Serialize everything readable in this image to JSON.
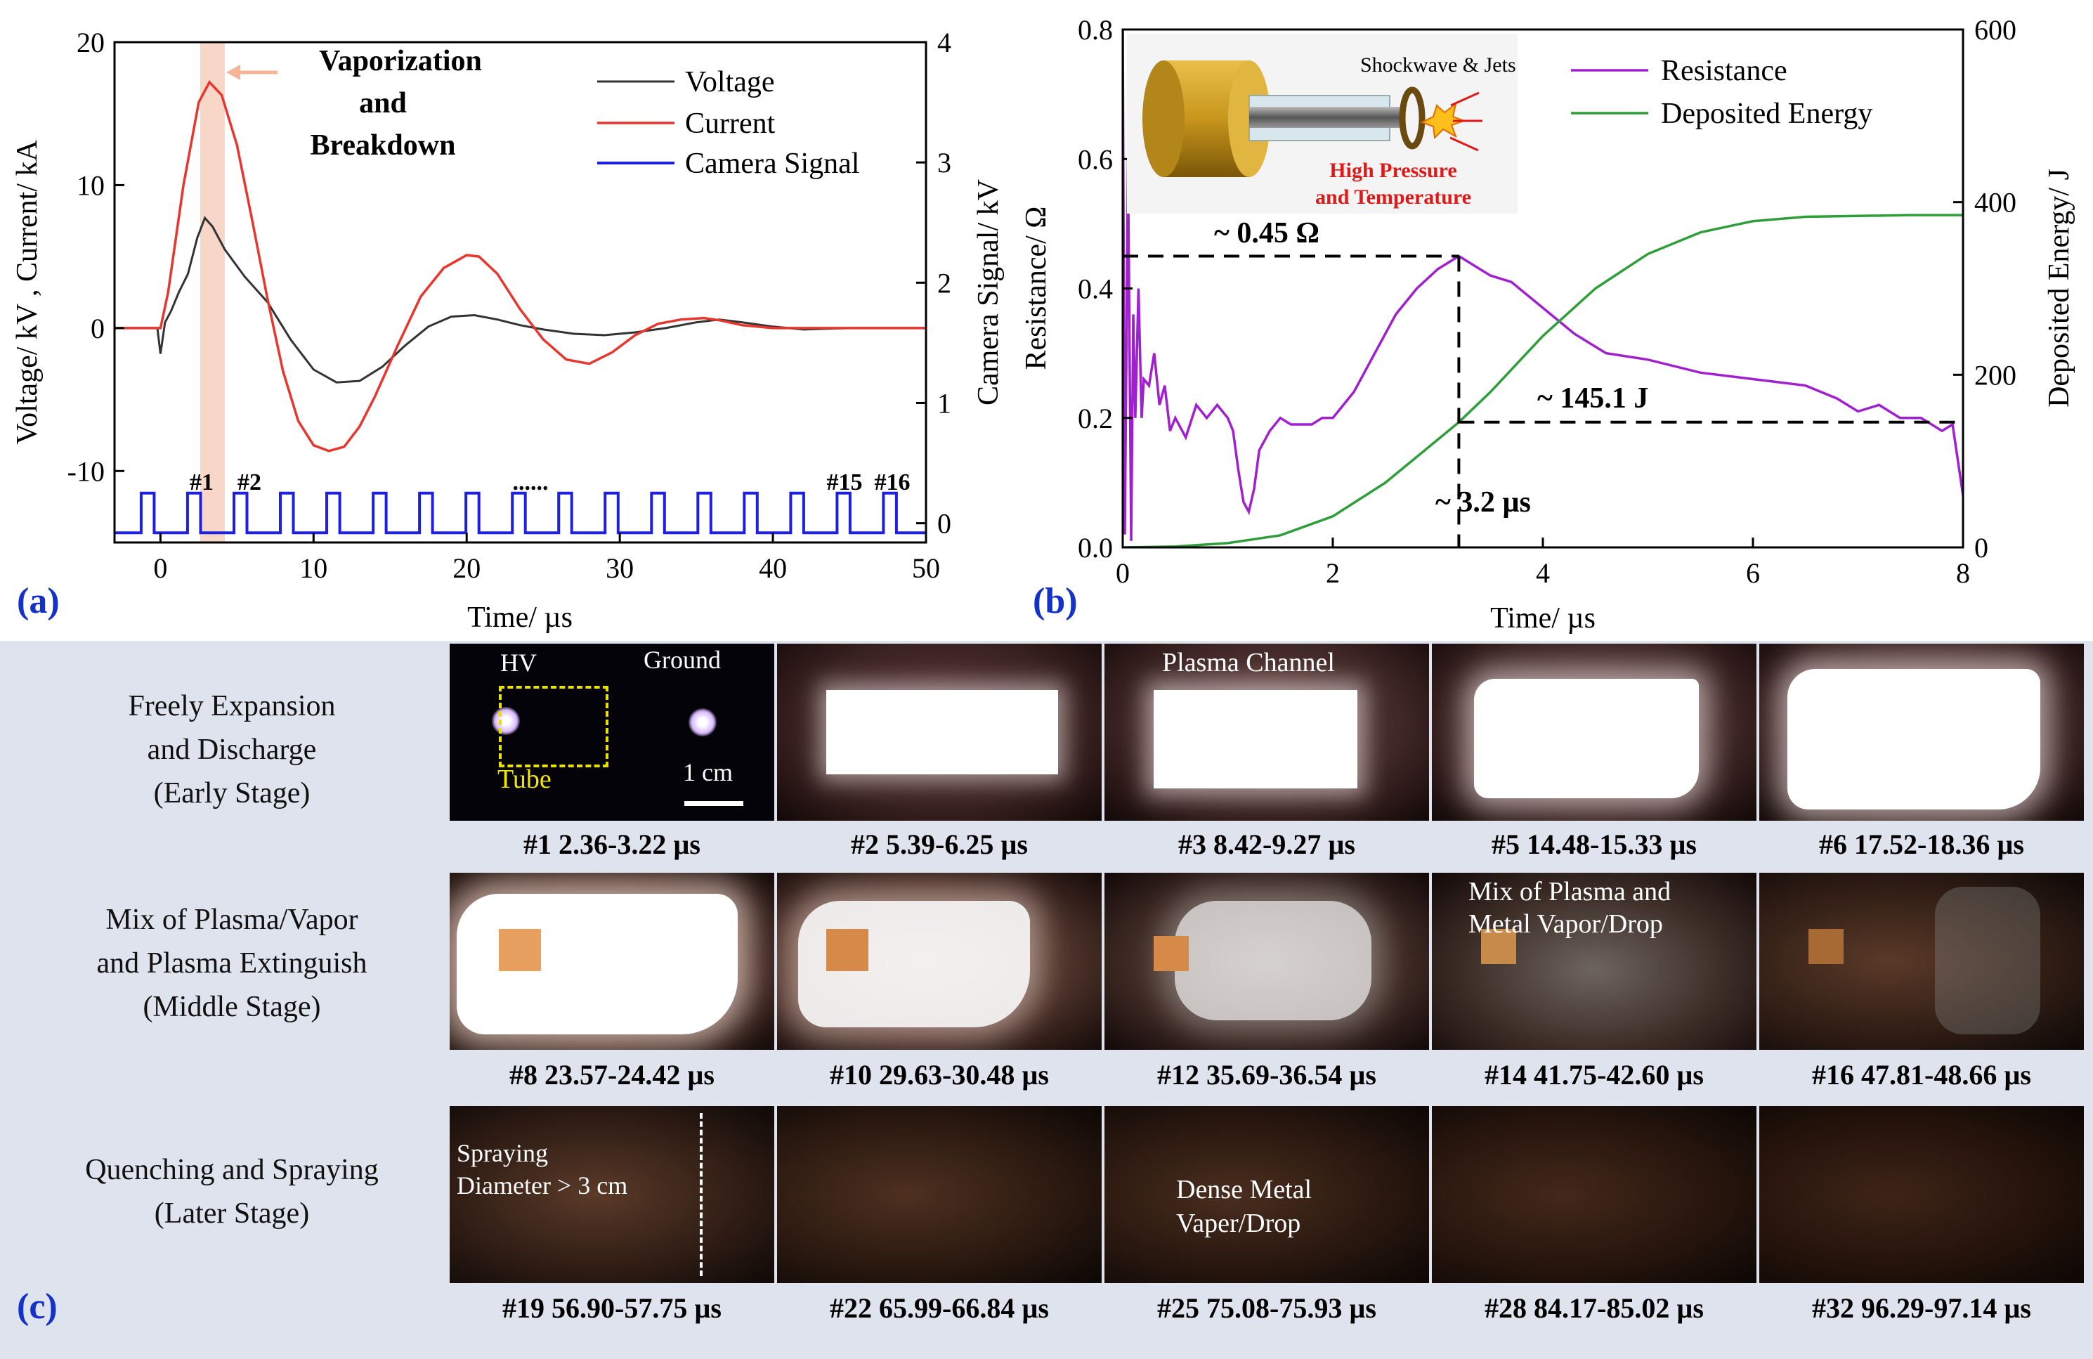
{
  "panel_a": {
    "letter": "(a)",
    "chart_data": {
      "type": "line",
      "xlabel": "Time/ µs",
      "ylabel_left": "Voltage/ kV , Current/ kA",
      "ylabel_right": "Camera Signal/ kV",
      "xlim": [
        -3,
        50
      ],
      "ylim_left": [
        -15,
        20
      ],
      "ylim_right": [
        -0.16,
        4
      ],
      "xticks": [
        "0",
        "10",
        "20",
        "30",
        "40",
        "50"
      ],
      "yticks_left": [
        "-10",
        "0",
        "10",
        "20"
      ],
      "yticks_right": [
        "0",
        "1",
        "2",
        "3",
        "4"
      ],
      "highlight_span": [
        2.6,
        4.2
      ],
      "annotation": [
        "Vaporization",
        "and",
        "Breakdown"
      ],
      "frame_marks": [
        "#1",
        "#2",
        "......",
        "#15",
        "#16"
      ],
      "legend": [
        "Voltage",
        "Current",
        "Camera Signal"
      ],
      "series": [
        {
          "name": "Voltage",
          "color": "#333333",
          "axis": "left",
          "x": [
            -3,
            -0.2,
            0,
            0.3,
            0.7,
            1.2,
            1.8,
            2.4,
            2.9,
            3.4,
            4.2,
            5.5,
            7,
            8.5,
            10,
            11.5,
            13,
            14.5,
            16,
            17.5,
            19,
            20.5,
            22,
            23.5,
            25,
            27,
            29,
            31,
            33,
            35,
            36.5,
            38,
            40,
            42,
            45,
            50
          ],
          "y": [
            0,
            0,
            -1.8,
            0.4,
            1.2,
            2.5,
            3.8,
            6.3,
            7.7,
            7.1,
            5.5,
            3.6,
            1.8,
            -0.8,
            -2.9,
            -3.8,
            -3.7,
            -2.7,
            -1.2,
            0.1,
            0.8,
            0.9,
            0.6,
            0.2,
            -0.1,
            -0.4,
            -0.5,
            -0.3,
            0,
            0.4,
            0.6,
            0.4,
            0.1,
            -0.1,
            0,
            0
          ]
        },
        {
          "name": "Current",
          "color": "#e8362e",
          "axis": "left",
          "x": [
            -3,
            0,
            0.5,
            1.5,
            2.5,
            3.2,
            4,
            5,
            6,
            7,
            8,
            9,
            10,
            11,
            12,
            13,
            14,
            15.5,
            17,
            18.5,
            20,
            20.8,
            22,
            23.5,
            25,
            26.5,
            28,
            29.5,
            31,
            32.5,
            34,
            35.5,
            36.5,
            38,
            40,
            42,
            45,
            50
          ],
          "y": [
            0,
            0,
            2.5,
            10,
            15.8,
            17.2,
            16.3,
            12.8,
            7.5,
            2,
            -3,
            -6.5,
            -8.2,
            -8.6,
            -8.3,
            -6.9,
            -4.8,
            -1.2,
            2.2,
            4.2,
            5.1,
            5,
            3.8,
            1.3,
            -0.8,
            -2.2,
            -2.5,
            -1.7,
            -0.5,
            0.3,
            0.6,
            0.7,
            0.55,
            0.2,
            0,
            0,
            0,
            0
          ]
        },
        {
          "name": "Camera Signal",
          "color": "#1f1fe0",
          "axis": "right",
          "pulse_period_us": 3.03,
          "pulse_width_us": 0.85,
          "pulse_high_kV": 0.25,
          "baseline_kV": -0.08,
          "first_pulse_start_us": -1.26,
          "pulse_count": 17
        }
      ]
    }
  },
  "panel_b": {
    "letter": "(b)",
    "chart_data": {
      "type": "line",
      "xlabel": "Time/ µs",
      "ylabel_left": "Resistance/ Ω",
      "ylabel_right": "Deposited Energy/ J",
      "xlim": [
        0,
        8
      ],
      "ylim_left": [
        0,
        0.8
      ],
      "ylim_right": [
        0,
        600
      ],
      "xticks": [
        "0",
        "2",
        "4",
        "6",
        "8"
      ],
      "yticks_left": [
        "0.0",
        "0.2",
        "0.4",
        "0.6",
        "0.8"
      ],
      "yticks_right": [
        "0",
        "200",
        "400",
        "600"
      ],
      "legend": [
        "Resistance",
        "Deposited Energy"
      ],
      "annotations": {
        "peak_resistance": "~ 0.45 Ω",
        "energy_at_peak": "~ 145.1 J",
        "time_at_peak": "~ 3.2 µs"
      },
      "marker_x": 3.2,
      "marker_resistance": 0.45,
      "marker_energy": 145.1,
      "inset": {
        "shock_label": "Shockwave & Jets",
        "pressure_label": "High Pressure",
        "temperature_label": "and Temperature"
      },
      "series": [
        {
          "name": "Resistance",
          "color": "#a020d0",
          "axis": "left",
          "x": [
            0,
            0.02,
            0.05,
            0.08,
            0.1,
            0.12,
            0.15,
            0.18,
            0.2,
            0.25,
            0.3,
            0.35,
            0.4,
            0.45,
            0.5,
            0.6,
            0.7,
            0.8,
            0.9,
            1.0,
            1.05,
            1.1,
            1.15,
            1.2,
            1.25,
            1.3,
            1.4,
            1.5,
            1.6,
            1.7,
            1.8,
            1.9,
            2.0,
            2.2,
            2.4,
            2.6,
            2.8,
            3.0,
            3.1,
            3.2,
            3.3,
            3.5,
            3.7,
            4.0,
            4.3,
            4.6,
            5.0,
            5.5,
            6.0,
            6.5,
            6.8,
            7.0,
            7.2,
            7.4,
            7.6,
            7.8,
            7.9,
            8.0
          ],
          "y": [
            0.8,
            0.02,
            0.6,
            0.01,
            0.36,
            0.2,
            0.4,
            0.2,
            0.26,
            0.25,
            0.3,
            0.22,
            0.25,
            0.18,
            0.2,
            0.17,
            0.22,
            0.2,
            0.22,
            0.2,
            0.18,
            0.12,
            0.07,
            0.055,
            0.09,
            0.15,
            0.18,
            0.2,
            0.19,
            0.19,
            0.19,
            0.2,
            0.2,
            0.24,
            0.3,
            0.36,
            0.4,
            0.43,
            0.44,
            0.45,
            0.44,
            0.42,
            0.41,
            0.37,
            0.33,
            0.3,
            0.29,
            0.27,
            0.26,
            0.25,
            0.23,
            0.21,
            0.22,
            0.2,
            0.2,
            0.18,
            0.19,
            0.08
          ]
        },
        {
          "name": "Deposited Energy",
          "color": "#2f9e3a",
          "axis": "right",
          "x": [
            0,
            0.5,
            1.0,
            1.5,
            2.0,
            2.5,
            3.0,
            3.2,
            3.5,
            4.0,
            4.5,
            5.0,
            5.5,
            6.0,
            6.5,
            7.0,
            7.5,
            8.0
          ],
          "y": [
            0,
            1,
            5,
            14,
            36,
            75,
            125,
            145.1,
            180,
            245,
            300,
            340,
            365,
            378,
            383,
            384,
            385,
            385
          ]
        }
      ]
    }
  },
  "panel_c": {
    "letter": "(c)",
    "stages": [
      {
        "lines": [
          "Freely Expansion",
          "and Discharge",
          "(Early Stage)"
        ]
      },
      {
        "lines": [
          "Mix of Plasma/Vapor",
          "and Plasma Extinguish",
          "(Middle Stage)"
        ]
      },
      {
        "lines": [
          "Quenching and Spraying",
          "(Later Stage)"
        ]
      }
    ],
    "rows": [
      [
        {
          "caption": "#1 2.36-3.22 µs",
          "hv": "HV",
          "ground": "Ground",
          "tube": "Tube",
          "scale": "1 cm"
        },
        {
          "caption": "#2 5.39-6.25 µs"
        },
        {
          "caption": "#3 8.42-9.27 µs",
          "overlay": "Plasma Channel"
        },
        {
          "caption": "#5 14.48-15.33 µs"
        },
        {
          "caption": "#6 17.52-18.36 µs"
        }
      ],
      [
        {
          "caption": "#8 23.57-24.42 µs"
        },
        {
          "caption": "#10 29.63-30.48 µs"
        },
        {
          "caption": "#12 35.69-36.54 µs"
        },
        {
          "caption": "#14 41.75-42.60 µs",
          "overlay1": "Mix of Plasma and",
          "overlay2": "Metal Vapor/Drop"
        },
        {
          "caption": "#16 47.81-48.66 µs"
        }
      ],
      [
        {
          "caption": "#19 56.90-57.75 µs",
          "overlay1": "Spraying",
          "overlay2": "Diameter > 3 cm"
        },
        {
          "caption": "#22 65.99-66.84 µs"
        },
        {
          "caption": "#25 75.08-75.93 µs",
          "overlay1": "Dense Metal",
          "overlay2": "Vaper/Drop"
        },
        {
          "caption": "#28 84.17-85.02 µs"
        },
        {
          "caption": "#32 96.29-97.14 µs"
        }
      ]
    ]
  }
}
